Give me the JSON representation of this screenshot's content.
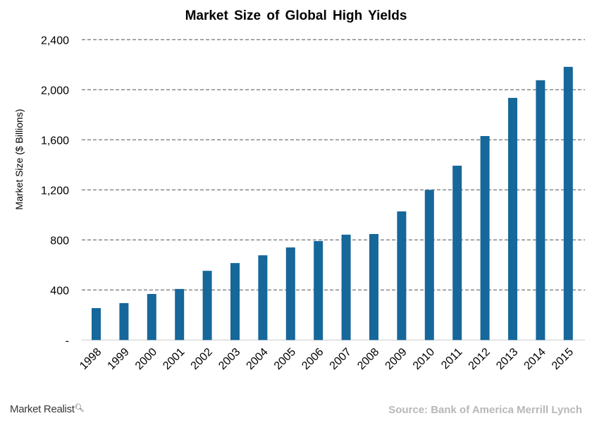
{
  "chart_data": {
    "type": "bar",
    "title": "Market Size of Global High Yields",
    "xlabel": "",
    "ylabel": "Market Size ($ Billions)",
    "ylim": [
      0,
      2400
    ],
    "yticks": [
      0,
      400,
      800,
      1200,
      1600,
      2000,
      2400
    ],
    "ytick_labels": [
      "-",
      "400",
      "800",
      "1,200",
      "1,600",
      "2,000",
      "2,400"
    ],
    "grid": true,
    "bar_color": "#16679a",
    "categories": [
      "1998",
      "1999",
      "2000",
      "2001",
      "2002",
      "2003",
      "2004",
      "2005",
      "2006",
      "2007",
      "2008",
      "2009",
      "2010",
      "2011",
      "2012",
      "2013",
      "2014",
      "2015"
    ],
    "values": [
      255,
      295,
      368,
      408,
      553,
      615,
      677,
      740,
      791,
      842,
      847,
      1028,
      1200,
      1393,
      1630,
      1935,
      2076,
      2183
    ]
  },
  "footer": {
    "logo": "Market Realist",
    "source": "Source: Bank of America Merrill Lynch"
  }
}
